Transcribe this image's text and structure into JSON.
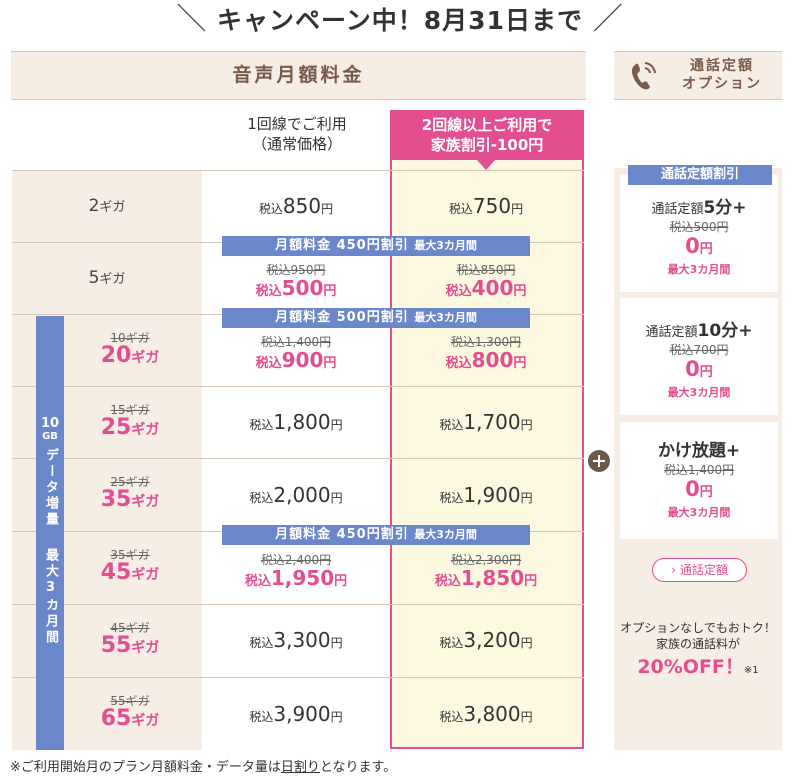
{
  "banner": {
    "text": "キャンペーン中！8月31日まで",
    "slash_left": "＼",
    "slash_right": "／"
  },
  "header": {
    "main": "音声月額料金",
    "option_line1": "通話定額",
    "option_line2": "オプション",
    "icon": "phone-icon"
  },
  "columns": {
    "normal_line1": "1回線でご利用",
    "normal_line2": "（通常価格）",
    "family_line1": "2回線以上ご利用で",
    "family_line2": "家族割引-100円"
  },
  "tax": "税込",
  "yen": "円",
  "giga": "ギガ",
  "sidebar": {
    "line1": "10",
    "line2": "GB",
    "line3": "データ増量",
    "line4": "最大3カ月間"
  },
  "discounts": {
    "d450": {
      "main": "月額料金 450円割引",
      "sub": "最大3カ月間"
    },
    "d500": {
      "main": "月額料金 500円割引",
      "sub": "最大3カ月間"
    },
    "d450b": {
      "main": "月額料金 450円割引",
      "sub": "最大3カ月間"
    }
  },
  "rows": [
    {
      "gb": "2",
      "p1": "850",
      "p2": "750"
    },
    {
      "gb": "5",
      "p1_old": "税込950円",
      "p1": "500",
      "p2_old": "税込850円",
      "p2": "400"
    },
    {
      "gb_old": "10ギガ",
      "gb": "20",
      "p1_old": "税込1,400円",
      "p1": "900",
      "p2_old": "税込1,300円",
      "p2": "800"
    },
    {
      "gb_old": "15ギガ",
      "gb": "25",
      "p1": "1,800",
      "p2": "1,700"
    },
    {
      "gb_old": "25ギガ",
      "gb": "35",
      "p1": "2,000",
      "p2": "1,900"
    },
    {
      "gb_old": "35ギガ",
      "gb": "45",
      "p1_old": "税込2,400円",
      "p1": "1,950",
      "p2_old": "税込2,300円",
      "p2": "1,850"
    },
    {
      "gb_old": "45ギガ",
      "gb": "55",
      "p1": "3,300",
      "p2": "3,200"
    },
    {
      "gb_old": "55ギガ",
      "gb": "65",
      "p1": "3,900",
      "p2": "3,800"
    }
  ],
  "options": {
    "badge": "通話定額割引",
    "card1": {
      "prefix": "通話定額",
      "big": "5分+",
      "old": "税込500円",
      "zero": "0",
      "yen": "円",
      "note": "最大3カ月間"
    },
    "card2": {
      "prefix": "通話定額",
      "big": "10分+",
      "old": "税込700円",
      "zero": "0",
      "yen": "円",
      "note": "最大3カ月間"
    },
    "card3": {
      "big": "かけ放題+",
      "old": "税込1,400円",
      "zero": "0",
      "yen": "円",
      "note": "最大3カ月間"
    },
    "link": "通話定額",
    "link_icon": "chevron-right-icon",
    "promo_line1": "オプションなしでもおトク！",
    "promo_line2": "家族の通話料が",
    "promo_big": "20%OFF！",
    "promo_note": "※1"
  },
  "footnote": {
    "pre": "※ご利用開始月のプラン月額料金・データ量は",
    "link": "日割り",
    "post": "となります。"
  },
  "colors": {
    "pink": "#e24e8f",
    "blue": "#6a87c9",
    "beige": "#f6ede5",
    "cream": "#fcf9e0",
    "brown": "#7a5a48"
  }
}
